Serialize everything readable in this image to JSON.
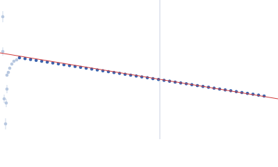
{
  "chart_data": {
    "type": "scatter",
    "xlim": [
      0,
      400
    ],
    "ylim": [
      0,
      200
    ],
    "series": [
      {
        "color": "#b8c8e0",
        "x": [
          4,
          4,
          10,
          12,
          14,
          17,
          20,
          24,
          10,
          6,
          9,
          8
        ],
        "values": [
          176,
          126,
          92,
          96,
          102,
          108,
          112,
          114,
          72,
          58,
          52,
          22
        ],
        "errors": [
          8,
          6,
          2,
          2,
          2,
          2,
          2,
          2,
          6,
          6,
          6,
          8
        ]
      },
      {
        "color": "#3d64ae",
        "x": [
          28,
          36,
          44,
          52,
          60,
          68,
          76,
          84,
          92,
          100,
          108,
          116,
          124,
          132,
          140,
          148,
          156,
          164,
          172,
          180,
          188,
          196,
          204,
          212,
          220,
          228,
          236,
          244,
          252,
          260,
          268,
          276,
          284,
          292,
          300,
          308,
          316,
          324,
          332,
          340,
          348,
          356,
          364,
          372,
          380
        ],
        "values": [
          117,
          115.8,
          114.5,
          113.3,
          112,
          110.8,
          109.5,
          108.3,
          107,
          105.8,
          104.5,
          103.3,
          102,
          100.8,
          99.5,
          98.3,
          97,
          95.8,
          94.6,
          93.3,
          92,
          90.8,
          89.5,
          88.3,
          87,
          85.8,
          84.6,
          83.3,
          82,
          80.8,
          79.6,
          78.3,
          77,
          75.8,
          74.6,
          73.3,
          72,
          70.8,
          69.6,
          68.3,
          67,
          65.8,
          64.6,
          63.3,
          62
        ],
        "errors": [
          1,
          1,
          1,
          1,
          1,
          1,
          1,
          1,
          1,
          1,
          1,
          1,
          1,
          1,
          1,
          1,
          1,
          1,
          1,
          1,
          1,
          1,
          1,
          1,
          1,
          1,
          1,
          1,
          1,
          1,
          1,
          1,
          1,
          1,
          1,
          1,
          1,
          1,
          1,
          1,
          1,
          1,
          1,
          1,
          1
        ]
      }
    ],
    "fit": {
      "color": "#d03a3a",
      "x": [
        0,
        400
      ],
      "values": [
        124,
        58
      ]
    },
    "vline": {
      "color": "#c8d0e0",
      "x": 230
    }
  }
}
